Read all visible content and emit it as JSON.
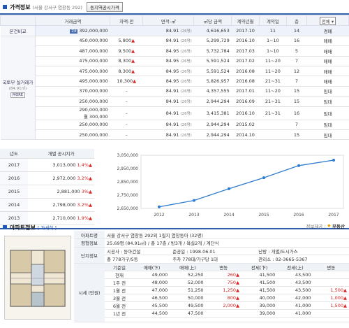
{
  "price_section": {
    "title": "가격정보",
    "subtitle": "(서울 강서구 염창동 292)",
    "button": "동지역공시가격"
  },
  "price_table": {
    "headers": [
      "거래금액",
      "차액-만",
      "면적-㎡",
      "㎡당 금액",
      "계약년월",
      "계약일",
      "층"
    ],
    "filter": "전체",
    "left_labels": {
      "compare": "본건비교",
      "molit": "국토부 실거래가",
      "molit_sub": "(84.91㎡)",
      "more": "MORE"
    },
    "rows": [
      {
        "num": "24",
        "amount": "392,000,000",
        "diff": "",
        "area": "84.91",
        "area_sub": "(26평)",
        "per": "4,616,653",
        "ym": "2017.10",
        "day": "11",
        "floor": "14",
        "type": "경매"
      },
      {
        "amount": "450,000,000",
        "diff": "5,800",
        "area": "84.91",
        "area_sub": "(26평)",
        "per": "5,299,729",
        "ym": "2016.10",
        "day": "1~10",
        "floor": "16",
        "type": "매매"
      },
      {
        "amount": "487,000,000",
        "diff": "9,500",
        "area": "84.95",
        "area_sub": "(26평)",
        "per": "5,732,784",
        "ym": "2017.03",
        "day": "1~10",
        "floor": "5",
        "type": "매매"
      },
      {
        "amount": "475,000,000",
        "diff": "8,300",
        "area": "84.95",
        "area_sub": "(26평)",
        "per": "5,591,524",
        "ym": "2017.02",
        "day": "11~20",
        "floor": "7",
        "type": "매매"
      },
      {
        "amount": "475,000,000",
        "diff": "8,300",
        "area": "84.95",
        "area_sub": "(26평)",
        "per": "5,591,524",
        "ym": "2016.08",
        "day": "11~20",
        "floor": "12",
        "type": "매매"
      },
      {
        "amount": "495,000,000",
        "diff": "10,300",
        "area": "84.95",
        "area_sub": "(26평)",
        "per": "5,826,957",
        "ym": "2016.08",
        "day": "21~31",
        "floor": "7",
        "type": "매매"
      },
      {
        "amount": "370,000,000",
        "diff": "-",
        "area": "84.91",
        "area_sub": "(26평)",
        "per": "4,357,555",
        "ym": "2017.01",
        "day": "11~20",
        "floor": "15",
        "type": "임대"
      },
      {
        "amount": "250,000,000",
        "diff": "-",
        "area": "84.91",
        "area_sub": "(26평)",
        "per": "2,944,294",
        "ym": "2016.09",
        "day": "21~31",
        "floor": "15",
        "type": "임대"
      },
      {
        "amount": "290,000,000",
        "amount2": "월 300,000",
        "diff": "-",
        "area": "84.91",
        "area_sub": "(26평)",
        "per": "3,415,381",
        "ym": "2016.10",
        "day": "21~31",
        "floor": "16",
        "type": "임대"
      },
      {
        "amount": "250,000,000",
        "diff": "-",
        "area": "84.91",
        "area_sub": "(26평)",
        "per": "2,944,294",
        "ym": "2015.02",
        "day": "",
        "floor": "7",
        "type": "임대"
      },
      {
        "amount": "250,000,000",
        "diff": "-",
        "area": "84.91",
        "area_sub": "(26평)",
        "per": "2,944,294",
        "ym": "2014.10",
        "day": "",
        "floor": "15",
        "type": "임대"
      }
    ]
  },
  "official": {
    "headers": [
      "년도",
      "개별 공시지가"
    ],
    "rows": [
      {
        "year": "2017",
        "value": "3,013,000",
        "chg": "1.4%▲"
      },
      {
        "year": "2016",
        "value": "2,972,000",
        "chg": "3.2%▲"
      },
      {
        "year": "2015",
        "value": "2,881,000",
        "chg": "3%▲"
      },
      {
        "year": "2014",
        "value": "2,798,000",
        "chg": "3.2%▲"
      },
      {
        "year": "2013",
        "value": "2,710,000",
        "chg": "1.9%▲"
      }
    ]
  },
  "chart_data": {
    "type": "line",
    "x": [
      "2012",
      "2013",
      "2014",
      "2015",
      "2016",
      "2017"
    ],
    "series": [
      {
        "values": [
          2662000,
          2710000,
          2798000,
          2881000,
          2972000,
          3013000
        ]
      }
    ],
    "yticks": [
      "3,050,000",
      "2,950,000",
      "2,850,000",
      "2,750,000",
      "2,650,000"
    ],
    "ylim": [
      2650000,
      3050000
    ],
    "color": "#2e7bcf"
  },
  "chart_footer": {
    "source": "정보제공 :",
    "brand": "부동산"
  },
  "apt_section": {
    "title": "아파트정보",
    "subtitle": "[ 자세히 ]"
  },
  "apt_info": {
    "name_label": "아파트명",
    "name": "서울 강서구 염창동 292외 1필지 염창동아 (32평)",
    "pyeong_label": "평형정보",
    "pyeong": "25.69평 (84.91㎡) / 총 17층 / 방3개 / 욕실2개 / 계단식",
    "complex_label": "단지정보",
    "builder": "시공사 : 동아건설",
    "completed": "준공일 : 1998.06.01",
    "heating": "난방 : 개별/도시가스",
    "households": "총 778가구/5동",
    "parking": "주차 778대/가구당 1대",
    "office": "관리소 : 02-3665-5367",
    "market_label": "시세 (만원)"
  },
  "market": {
    "headers": [
      "기준일",
      "매매(下)",
      "매매(上)",
      "변동",
      "전세(下)",
      "전세(上)",
      "변동"
    ],
    "rows": [
      {
        "d": "현재",
        "s_lo": "49,000",
        "s_hi": "52,250",
        "s_chg": "260▲",
        "j_lo": "41,500",
        "j_hi": "43,500",
        "j_chg": ""
      },
      {
        "d": "1주 전",
        "s_lo": "48,000",
        "s_hi": "52,000",
        "s_chg": "750▲",
        "j_lo": "41,500",
        "j_hi": "43,500",
        "j_chg": ""
      },
      {
        "d": "1월 전",
        "s_lo": "47,000",
        "s_hi": "51,250",
        "s_chg": "1,250▲",
        "j_lo": "41,500",
        "j_hi": "43,500",
        "j_chg": "1,500▲"
      },
      {
        "d": "3월 전",
        "s_lo": "46,500",
        "s_hi": "50,000",
        "s_chg": "800▲",
        "j_lo": "40,000",
        "j_hi": "42,000",
        "j_chg": "1,000▲"
      },
      {
        "d": "6월 전",
        "s_lo": "45,500",
        "s_hi": "49,500",
        "s_chg": "2,000▲",
        "j_lo": "39,000",
        "j_hi": "41,000",
        "j_chg": "1,500▲"
      },
      {
        "d": "1년 전",
        "s_lo": "44,500",
        "s_hi": "47,500",
        "s_chg": "",
        "j_lo": "39,000",
        "j_hi": "41,000",
        "j_chg": ""
      }
    ]
  }
}
